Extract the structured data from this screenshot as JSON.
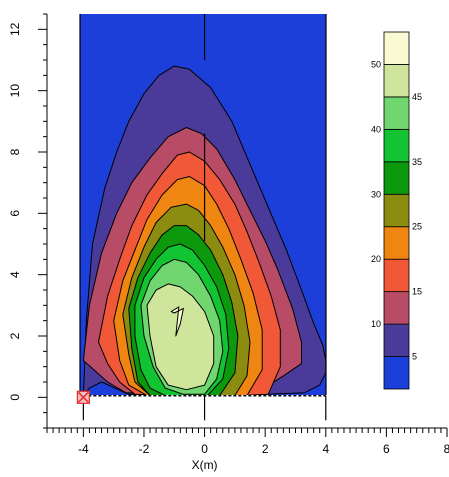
{
  "chart_data": {
    "type": "contour",
    "title": "",
    "xlabel": "X(m)",
    "ylabel": "",
    "xlim": [
      -5.2,
      8
    ],
    "ylim": [
      -1,
      12.5
    ],
    "plot_xlim": [
      -4,
      4
    ],
    "plot_ylim": [
      0.05,
      12.5
    ],
    "x_ticks": [
      -4,
      -2,
      0,
      2,
      4,
      6,
      8
    ],
    "x_tick_labels": [
      "-4",
      "-2",
      "0",
      "2",
      "4",
      "6",
      "8"
    ],
    "y_ticks": [
      0,
      2,
      4,
      6,
      8,
      10,
      12
    ],
    "y_tick_labels": [
      "0",
      "2",
      "4",
      "6",
      "8",
      "10",
      "12"
    ],
    "grid": false,
    "legend": "right colorbar",
    "background_color": "#1b3fd8",
    "level_colors": [
      "#1b3fd8",
      "#4a3a9a",
      "#b84b66",
      "#f05838",
      "#f08612",
      "#8c8c10",
      "#0d990d",
      "#12c431",
      "#70d670",
      "#cfe59c",
      "#fafad2"
    ],
    "contour_levels": [
      {
        "value": 5,
        "color": "#4a3a9a",
        "x": [
          -4,
          -3.9,
          -3.7,
          -3.3,
          -2.9,
          -2.5,
          -2.0,
          -1.5,
          -1.0,
          -0.5,
          0.2,
          0.9,
          1.5,
          2.1,
          2.7,
          3.2,
          3.6,
          3.9,
          4.0,
          4.0,
          3.8,
          3.3,
          1.5,
          -0.5,
          -2.5,
          -3.4,
          -3.8
        ],
        "y": [
          0.05,
          2.5,
          5.0,
          6.8,
          8.0,
          9.0,
          9.9,
          10.5,
          10.8,
          10.7,
          10.1,
          9.0,
          7.6,
          6.2,
          4.8,
          3.5,
          2.4,
          1.7,
          1.2,
          0.8,
          0.4,
          0.15,
          0.08,
          0.08,
          0.1,
          0.5,
          0.3
        ]
      },
      {
        "value": 10,
        "color": "#b84b66",
        "x": [
          -4.0,
          -3.8,
          -3.4,
          -2.9,
          -2.4,
          -1.8,
          -1.2,
          -0.6,
          -0.1,
          0.4,
          1.0,
          1.5,
          2.0,
          2.4,
          2.9,
          3.2,
          3.2,
          2.6,
          1.8,
          0.5,
          -1.2,
          -2.6,
          -3.2
        ],
        "y": [
          1.2,
          3.0,
          4.7,
          6.0,
          7.0,
          7.8,
          8.5,
          8.8,
          8.6,
          8.1,
          7.1,
          6.1,
          5.1,
          4.2,
          2.9,
          1.8,
          1.1,
          0.7,
          0.2,
          0.08,
          0.08,
          0.15,
          0.5
        ]
      },
      {
        "value": 15,
        "color": "#f05838",
        "x": [
          -3.5,
          -3.2,
          -2.8,
          -2.4,
          -1.9,
          -1.4,
          -0.9,
          -0.5,
          0.0,
          0.5,
          1.0,
          1.4,
          1.8,
          2.2,
          2.5,
          2.5,
          2.1,
          1.2,
          0.0,
          -1.2,
          -2.3,
          -2.8,
          -3.2
        ],
        "y": [
          1.8,
          3.3,
          4.5,
          5.6,
          6.6,
          7.3,
          7.9,
          8.0,
          7.7,
          7.1,
          6.3,
          5.4,
          4.4,
          3.3,
          2.2,
          1.0,
          0.1,
          0.06,
          0.06,
          0.06,
          0.1,
          0.5,
          1.1
        ]
      },
      {
        "value": 20,
        "color": "#f08612",
        "x": [
          -3.0,
          -2.7,
          -2.3,
          -1.9,
          -1.4,
          -0.9,
          -0.5,
          0.0,
          0.4,
          0.8,
          1.2,
          1.6,
          1.9,
          1.9,
          1.4,
          0.3,
          -0.8,
          -1.9,
          -2.5,
          -2.8
        ],
        "y": [
          2.5,
          3.8,
          4.8,
          5.8,
          6.6,
          7.1,
          7.2,
          6.9,
          6.3,
          5.5,
          4.5,
          3.4,
          2.2,
          0.9,
          0.06,
          0.06,
          0.06,
          0.06,
          0.4,
          1.2
        ]
      },
      {
        "value": 25,
        "color": "#8c8c10",
        "x": [
          -2.7,
          -2.4,
          -2.0,
          -1.6,
          -1.1,
          -0.6,
          -0.2,
          0.2,
          0.6,
          1.0,
          1.3,
          1.5,
          1.4,
          1.0,
          0.2,
          -0.8,
          -1.8,
          -2.3,
          -2.5
        ],
        "y": [
          2.7,
          3.9,
          4.9,
          5.7,
          6.2,
          6.3,
          6.1,
          5.6,
          4.9,
          4.0,
          3.0,
          1.8,
          0.7,
          0.06,
          0.06,
          0.06,
          0.06,
          0.5,
          1.4
        ]
      },
      {
        "value": 30,
        "color": "#0d990d",
        "x": [
          -2.5,
          -2.2,
          -1.8,
          -1.4,
          -1.0,
          -0.6,
          -0.2,
          0.2,
          0.6,
          0.9,
          1.1,
          1.0,
          0.5,
          -0.2,
          -1.1,
          -1.8,
          -2.2,
          -2.4
        ],
        "y": [
          2.9,
          3.9,
          4.7,
          5.3,
          5.6,
          5.6,
          5.3,
          4.8,
          4.0,
          3.1,
          2.0,
          0.8,
          0.06,
          0.06,
          0.06,
          0.06,
          0.5,
          1.6
        ]
      },
      {
        "value": 35,
        "color": "#12c431",
        "x": [
          -2.3,
          -2.0,
          -1.6,
          -1.2,
          -0.8,
          -0.4,
          0.0,
          0.4,
          0.7,
          0.8,
          0.6,
          0.1,
          -0.6,
          -1.3,
          -1.8,
          -2.1,
          -2.3
        ],
        "y": [
          3.0,
          3.9,
          4.5,
          4.9,
          5.0,
          4.8,
          4.3,
          3.6,
          2.7,
          1.6,
          0.6,
          0.06,
          0.06,
          0.06,
          0.3,
          0.9,
          2.0
        ]
      },
      {
        "value": 40,
        "color": "#70d670",
        "x": [
          -2.1,
          -1.8,
          -1.4,
          -1.0,
          -0.6,
          -0.2,
          0.2,
          0.5,
          0.6,
          0.4,
          0.0,
          -0.7,
          -1.3,
          -1.7,
          -2.0
        ],
        "y": [
          3.0,
          3.8,
          4.3,
          4.5,
          4.4,
          4.0,
          3.3,
          2.5,
          1.5,
          0.6,
          0.1,
          0.1,
          0.3,
          1.0,
          2.0
        ]
      },
      {
        "value": 45,
        "color": "#cfe59c",
        "x": [
          -1.9,
          -1.6,
          -1.2,
          -0.8,
          -0.4,
          0.0,
          0.3,
          0.3,
          0.0,
          -0.6,
          -1.2,
          -1.6,
          -1.8
        ],
        "y": [
          3.0,
          3.5,
          3.7,
          3.6,
          3.3,
          2.8,
          2.0,
          1.1,
          0.4,
          0.25,
          0.4,
          1.0,
          2.0
        ]
      },
      {
        "value": 50,
        "color": "#fafad2",
        "x": [
          -1.1,
          -0.85,
          -0.95,
          -0.8,
          -0.7,
          -1.0
        ],
        "y": [
          2.8,
          2.95,
          2.0,
          2.4,
          2.9,
          2.75
        ]
      }
    ],
    "colorbar": {
      "min": 0,
      "max": 55,
      "bands": [
        {
          "from": 0,
          "to": 5,
          "color": "#1b3fd8"
        },
        {
          "from": 5,
          "to": 10,
          "color": "#4a3a9a"
        },
        {
          "from": 10,
          "to": 15,
          "color": "#b84b66"
        },
        {
          "from": 15,
          "to": 20,
          "color": "#f05838"
        },
        {
          "from": 20,
          "to": 25,
          "color": "#f08612"
        },
        {
          "from": 25,
          "to": 30,
          "color": "#8c8c10"
        },
        {
          "from": 30,
          "to": 35,
          "color": "#0d990d"
        },
        {
          "from": 35,
          "to": 40,
          "color": "#12c431"
        },
        {
          "from": 40,
          "to": 45,
          "color": "#70d670"
        },
        {
          "from": 45,
          "to": 50,
          "color": "#cfe59c"
        },
        {
          "from": 50,
          "to": 55,
          "color": "#fafad2"
        }
      ],
      "left_labels": [
        "10",
        "20",
        "30",
        "40",
        "50"
      ],
      "left_label_values": [
        10,
        20,
        30,
        40,
        50
      ],
      "right_labels": [
        "5",
        "15",
        "25",
        "35",
        "45"
      ],
      "right_label_values": [
        5,
        15,
        25,
        35,
        45
      ]
    },
    "annotations": {
      "center_line": {
        "x": 0,
        "y_from": 5.1,
        "y_to": 8.6
      },
      "center_line_top": {
        "x": 0,
        "y_from": 11.0,
        "y_to": 12.5
      },
      "center_line_bottom": {
        "x": 0,
        "y_from": -0.75,
        "y_to": 0.05
      },
      "left_line_bottom": {
        "x": -4,
        "y_from": -0.75,
        "y_to": 0.05
      },
      "right_line_bottom": {
        "x": 4,
        "y_from": -0.75,
        "y_to": 0.05
      },
      "baseline": {
        "y": 0.05,
        "x_from": -4,
        "x_to": 4,
        "style": "dashed"
      },
      "marker": {
        "x": -4,
        "y": 0.0,
        "symbol": "x-box",
        "color": "#e03030"
      }
    }
  }
}
